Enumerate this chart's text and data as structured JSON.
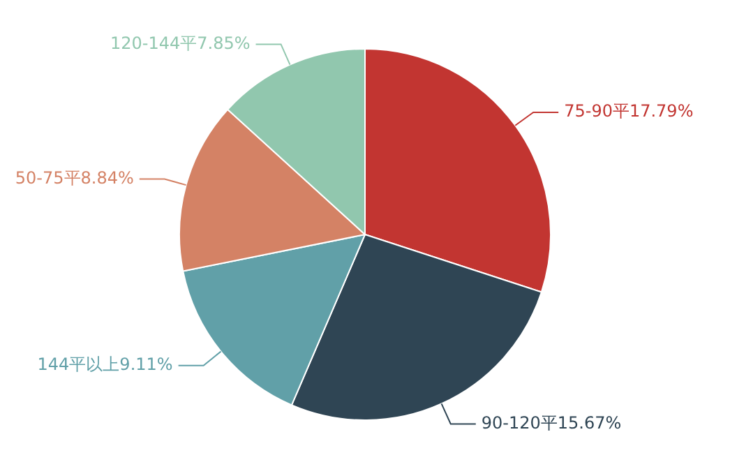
{
  "chart_data": {
    "type": "pie",
    "categories": [
      "75-90平",
      "90-120平",
      "144平以上",
      "50-75平",
      "120-144平"
    ],
    "values": [
      17.79,
      15.67,
      9.11,
      8.84,
      7.85
    ],
    "value_labels": [
      "17.79%",
      "15.67%",
      "9.11%",
      "8.84%",
      "7.85%"
    ],
    "colors": [
      "#c23531",
      "#2f4554",
      "#61a0a8",
      "#d48265",
      "#91c7ae"
    ],
    "legend": false
  }
}
